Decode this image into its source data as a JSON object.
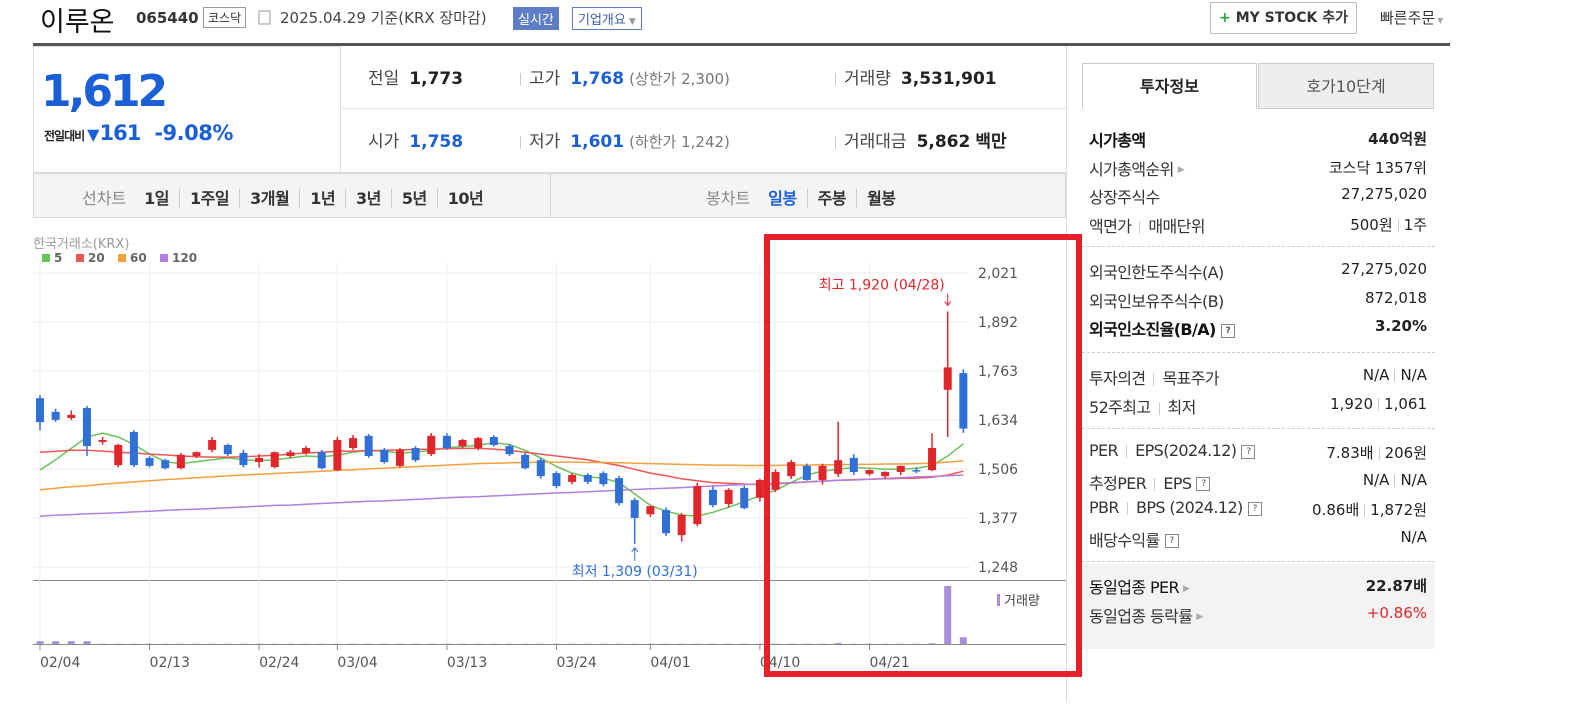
{
  "header": {
    "name": "이루온",
    "code": "065440",
    "market": "코스닥",
    "date": "2025.04.29 기준(KRX 장마감)",
    "realtime": "실시간",
    "company": "기업개요",
    "mystock": "MY STOCK 추가",
    "quick_order": "빠른주문"
  },
  "price": {
    "current": "1,612",
    "change_label": "전일대비",
    "change": "161",
    "change_pct": "-9.08%"
  },
  "summary": [
    [
      {
        "label": "전일",
        "value": "1,773"
      },
      {
        "label": "고가",
        "value": "1,768",
        "note": "(상한가 2,300)",
        "color": "#1a5fd6"
      },
      {
        "label": "거래량",
        "value": "3,531,901"
      }
    ],
    [
      {
        "label": "시가",
        "value": "1,758",
        "color": "#1a5fd6"
      },
      {
        "label": "저가",
        "value": "1,601",
        "note": "(하한가 1,242)",
        "color": "#1a5fd6"
      },
      {
        "label": "거래대금",
        "value": "5,862",
        "unit": "백만"
      }
    ]
  ],
  "period_tabs": {
    "line_label": "선차트",
    "line": [
      "1일",
      "1주일",
      "3개월",
      "1년",
      "3년",
      "5년",
      "10년"
    ],
    "candle_label": "봉차트",
    "candle": [
      "일봉",
      "주봉",
      "월봉"
    ],
    "active_candle": 0
  },
  "chart_data": {
    "type": "candlestick",
    "source": "한국거래소(KRX)",
    "categories": [
      "02/04",
      null,
      null,
      null,
      null,
      null,
      null,
      "02/13",
      null,
      null,
      null,
      null,
      null,
      null,
      "02/24",
      null,
      null,
      null,
      null,
      "03/04",
      null,
      null,
      null,
      null,
      null,
      null,
      "03/13",
      null,
      null,
      null,
      null,
      null,
      null,
      "03/24",
      null,
      null,
      null,
      null,
      null,
      "04/01",
      null,
      null,
      null,
      null,
      null,
      null,
      "04/10",
      null,
      null,
      null,
      null,
      null,
      null,
      "04/21",
      null,
      null,
      null,
      null,
      null,
      null
    ],
    "open": [
      1692,
      1656,
      1640,
      1666,
      1577,
      1516,
      1603,
      1535,
      1529,
      1508,
      1540,
      1556,
      1569,
      1548,
      1524,
      1511,
      1540,
      1548,
      1550,
      1503,
      1561,
      1593,
      1556,
      1514,
      1561,
      1545,
      1593,
      1566,
      1561,
      1590,
      1566,
      1543,
      1529,
      1495,
      1472,
      1490,
      1495,
      1482,
      1424,
      1387,
      1398,
      1332,
      1361,
      1451,
      1414,
      1456,
      1430,
      1451,
      1487,
      1514,
      1477,
      1493,
      1535,
      1493,
      1487,
      1498,
      1503,
      1503,
      1714,
      1758
    ],
    "high": [
      1700,
      1664,
      1660,
      1672,
      1590,
      1572,
      1608,
      1540,
      1533,
      1548,
      1552,
      1590,
      1572,
      1556,
      1545,
      1552,
      1556,
      1566,
      1556,
      1590,
      1595,
      1598,
      1561,
      1561,
      1566,
      1600,
      1600,
      1585,
      1590,
      1595,
      1572,
      1548,
      1535,
      1500,
      1495,
      1495,
      1500,
      1488,
      1430,
      1410,
      1405,
      1390,
      1470,
      1460,
      1455,
      1462,
      1480,
      1505,
      1530,
      1520,
      1520,
      1630,
      1545,
      1505,
      1500,
      1515,
      1510,
      1600,
      1920,
      1768
    ],
    "low": [
      1608,
      1630,
      1635,
      1540,
      1570,
      1510,
      1511,
      1510,
      1505,
      1505,
      1535,
      1550,
      1540,
      1510,
      1510,
      1508,
      1535,
      1543,
      1505,
      1500,
      1556,
      1535,
      1520,
      1510,
      1524,
      1540,
      1556,
      1560,
      1555,
      1565,
      1540,
      1505,
      1480,
      1455,
      1466,
      1466,
      1460,
      1410,
      1309,
      1380,
      1330,
      1315,
      1355,
      1405,
      1405,
      1400,
      1420,
      1445,
      1480,
      1475,
      1465,
      1485,
      1490,
      1488,
      1480,
      1490,
      1495,
      1500,
      1590,
      1601
    ],
    "close": [
      1629,
      1635,
      1648,
      1566,
      1582,
      1569,
      1516,
      1514,
      1508,
      1543,
      1550,
      1582,
      1545,
      1516,
      1535,
      1550,
      1550,
      1561,
      1508,
      1582,
      1587,
      1540,
      1524,
      1556,
      1529,
      1593,
      1561,
      1582,
      1587,
      1569,
      1545,
      1508,
      1487,
      1461,
      1490,
      1472,
      1466,
      1416,
      1377,
      1408,
      1337,
      1385,
      1461,
      1411,
      1451,
      1403,
      1477,
      1498,
      1524,
      1477,
      1514,
      1529,
      1498,
      1503,
      1498,
      1514,
      1500,
      1561,
      1773,
      1612
    ],
    "up_color": "#e0262b",
    "down_color": "#2f6fd6",
    "moving_averages": [
      {
        "name": "5",
        "color": "#6cc25a",
        "values": [
          1503,
          1530,
          1560,
          1590,
          1600,
          1590,
          1570,
          1545,
          1525,
          1520,
          1525,
          1530,
          1535,
          1530,
          1528,
          1530,
          1535,
          1540,
          1538,
          1542,
          1550,
          1555,
          1552,
          1548,
          1550,
          1555,
          1562,
          1565,
          1568,
          1575,
          1570,
          1555,
          1535,
          1512,
          1495,
          1485,
          1482,
          1470,
          1440,
          1410,
          1395,
          1385,
          1382,
          1392,
          1405,
          1420,
          1435,
          1450,
          1470,
          1490,
          1500,
          1505,
          1510,
          1508,
          1505,
          1505,
          1508,
          1515,
          1540,
          1572
        ]
      },
      {
        "name": "20",
        "color": "#ee5555",
        "values": [
          1550,
          1552,
          1555,
          1555,
          1553,
          1550,
          1548,
          1545,
          1543,
          1540,
          1538,
          1537,
          1537,
          1538,
          1540,
          1542,
          1545,
          1548,
          1550,
          1552,
          1553,
          1554,
          1555,
          1556,
          1557,
          1558,
          1559,
          1560,
          1560,
          1558,
          1555,
          1550,
          1545,
          1540,
          1535,
          1530,
          1522,
          1515,
          1505,
          1495,
          1488,
          1480,
          1475,
          1470,
          1468,
          1466,
          1465,
          1467,
          1469,
          1472,
          1474,
          1476,
          1478,
          1479,
          1480,
          1481,
          1482,
          1484,
          1490,
          1500
        ]
      },
      {
        "name": "60",
        "color": "#f5a03c",
        "values": [
          1451,
          1455,
          1459,
          1462,
          1466,
          1469,
          1472,
          1475,
          1478,
          1480,
          1483,
          1485,
          1488,
          1490,
          1492,
          1494,
          1496,
          1498,
          1500,
          1502,
          1504,
          1506,
          1508,
          1510,
          1512,
          1514,
          1516,
          1518,
          1520,
          1521,
          1522,
          1523,
          1524,
          1524,
          1524,
          1523,
          1523,
          1522,
          1521,
          1520,
          1519,
          1518,
          1517,
          1516,
          1516,
          1515,
          1515,
          1515,
          1516,
          1516,
          1517,
          1517,
          1518,
          1518,
          1519,
          1519,
          1520,
          1521,
          1524,
          1527
        ]
      },
      {
        "name": "120",
        "color": "#b17fe0",
        "values": [
          1382,
          1384,
          1386,
          1388,
          1389,
          1391,
          1393,
          1395,
          1397,
          1399,
          1400,
          1402,
          1404,
          1406,
          1408,
          1410,
          1411,
          1413,
          1415,
          1417,
          1419,
          1421,
          1422,
          1424,
          1426,
          1428,
          1430,
          1432,
          1433,
          1435,
          1437,
          1439,
          1441,
          1443,
          1444,
          1446,
          1448,
          1450,
          1452,
          1454,
          1455,
          1457,
          1459,
          1461,
          1463,
          1465,
          1466,
          1468,
          1470,
          1472,
          1474,
          1476,
          1477,
          1479,
          1481,
          1483,
          1485,
          1486,
          1488,
          1490
        ]
      }
    ],
    "volume": {
      "name": "거래량",
      "color": "#a890d8",
      "vlim": [
        0,
        31000000
      ],
      "values": [
        1500000,
        1500000,
        1500000,
        1500000,
        150000,
        150000,
        150000,
        150000,
        150000,
        150000,
        150000,
        150000,
        150000,
        150000,
        150000,
        150000,
        150000,
        150000,
        150000,
        150000,
        150000,
        150000,
        150000,
        150000,
        150000,
        150000,
        150000,
        150000,
        150000,
        150000,
        150000,
        150000,
        150000,
        150000,
        150000,
        150000,
        150000,
        150000,
        150000,
        150000,
        150000,
        150000,
        150000,
        150000,
        150000,
        150000,
        150000,
        150000,
        150000,
        150000,
        150000,
        500000,
        150000,
        150000,
        150000,
        150000,
        150000,
        400000,
        30500000,
        3531901
      ]
    },
    "ylim": [
      1214,
      2050
    ],
    "yticks": [
      {
        "value": 1248,
        "label": "1,248"
      },
      {
        "value": 1377,
        "label": "1,377"
      },
      {
        "value": 1506,
        "label": "1,506"
      },
      {
        "value": 1634,
        "label": "1,634"
      },
      {
        "value": 1763,
        "label": "1,763"
      },
      {
        "value": 1892,
        "label": "1,892"
      },
      {
        "value": 2021,
        "label": "2,021"
      }
    ],
    "grid": true,
    "annotations": [
      {
        "text": "최고 1,920 (04/28)",
        "color": "#e0262b"
      },
      {
        "text": "최저 1,309 (03/31)",
        "color": "#2f6fd6"
      }
    ]
  },
  "side": {
    "tabs": [
      "투자정보",
      "호가10단계"
    ],
    "sections": [
      [
        {
          "labels": [
            "시가총액"
          ],
          "values": [
            "440억원"
          ],
          "bold": true
        },
        {
          "labels": [
            "시가총액순위"
          ],
          "values": [
            "코스닥 1357위"
          ],
          "link": true
        },
        {
          "labels": [
            "상장주식수"
          ],
          "values": [
            "27,275,020"
          ]
        },
        {
          "labels": [
            "액면가",
            "매매단위"
          ],
          "values": [
            "500원",
            "1주"
          ]
        }
      ],
      [
        {
          "labels": [
            "외국인한도주식수(A)"
          ],
          "values": [
            "27,275,020"
          ]
        },
        {
          "labels": [
            "외국인보유주식수(B)"
          ],
          "values": [
            "872,018"
          ]
        },
        {
          "labels": [
            "외국인소진율(B/A)"
          ],
          "values": [
            "3.20%"
          ],
          "bold": true,
          "help": true
        }
      ],
      [
        {
          "labels": [
            "투자의견",
            "목표주가"
          ],
          "values": [
            "N/A",
            "N/A"
          ]
        },
        {
          "labels": [
            "52주최고",
            "최저"
          ],
          "values": [
            "1,920",
            "1,061"
          ]
        }
      ],
      [
        {
          "labels": [
            "PER",
            "EPS(2024.12)"
          ],
          "values": [
            "7.83배",
            "206원"
          ],
          "help": true
        },
        {
          "labels": [
            "추정PER",
            "EPS"
          ],
          "values": [
            "N/A",
            "N/A"
          ],
          "help": true
        },
        {
          "labels": [
            "PBR",
            "BPS (2024.12)"
          ],
          "values": [
            "0.86배",
            "1,872원"
          ],
          "help": true
        },
        {
          "labels": [
            "배당수익률"
          ],
          "values": [
            "N/A"
          ],
          "help": true
        }
      ],
      [
        {
          "labels": [
            "동일업종 PER"
          ],
          "values": [
            "22.87배"
          ],
          "bold": true,
          "link": true
        },
        {
          "labels": [
            "동일업종 등락률"
          ],
          "values": [
            "+0.86%"
          ],
          "link": true,
          "color": "#e0262b"
        }
      ]
    ]
  }
}
